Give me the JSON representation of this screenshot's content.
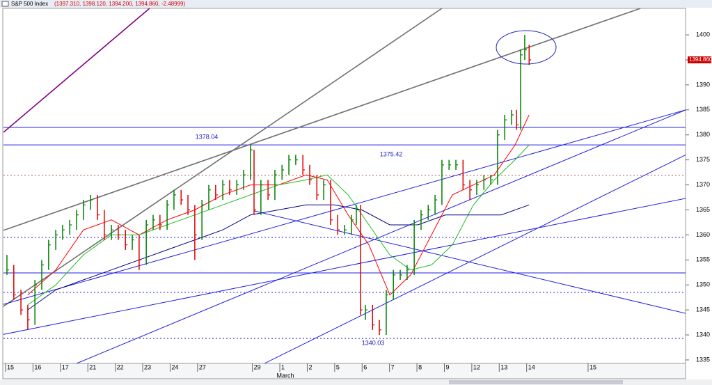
{
  "chart_data": {
    "type": "ohlc",
    "title": "S&P 500 Index",
    "quote": "(1397.310, 1398.120, 1394.200, 1394.860, -2.48999)",
    "last_label": "1394.860",
    "month_label": "March",
    "up_color": "#008000",
    "down_color": "#e00000",
    "x": [
      0.05,
      0.3,
      0.56,
      0.81,
      1.07,
      1.32,
      1.57,
      1.83,
      2.08,
      2.34,
      2.59,
      2.84,
      3.1,
      3.35,
      3.6,
      3.86,
      4.11,
      4.37,
      4.62,
      4.87,
      5.13,
      5.38,
      5.63,
      5.89,
      6.14,
      6.4,
      6.65,
      6.9,
      7.16,
      7.41,
      7.66,
      7.92,
      8.17,
      8.43,
      8.68,
      8.93,
      9.06,
      9.31,
      9.57,
      9.82,
      10.08,
      10.33,
      10.58,
      10.84,
      11.09,
      11.35,
      11.6,
      11.85,
      12.11,
      12.36,
      12.61,
      12.79,
      12.94,
      13.12,
      13.38,
      13.63,
      13.88,
      14.14,
      14.39,
      14.64,
      14.9,
      15.15,
      15.41,
      15.66,
      15.91,
      16.17,
      16.42,
      16.68,
      16.93,
      17.18,
      17.44,
      17.69,
      17.94,
      18.2,
      18.45,
      18.63,
      18.78,
      18.93,
      19.09
    ],
    "high": [
      1356,
      1354,
      1349,
      1346,
      1351,
      1355,
      1359,
      1361,
      1362,
      1363,
      1365,
      1367,
      1368,
      1368,
      1365,
      1362,
      1362,
      1361,
      1360,
      1360,
      1363,
      1364,
      1364,
      1367,
      1369,
      1369,
      1368,
      1366,
      1367,
      1370,
      1370,
      1371,
      1371,
      1371,
      1373,
      1378,
      1377,
      1371,
      1371,
      1373,
      1374,
      1376,
      1376,
      1376,
      1374,
      1372,
      1371,
      1371,
      1364,
      1362,
      1364,
      1366,
      1366,
      1346,
      1346,
      1343,
      1349,
      1353,
      1353,
      1354,
      1363,
      1365,
      1366,
      1368,
      1375,
      1375,
      1375,
      1375,
      1371,
      1371,
      1372,
      1372,
      1381,
      1384,
      1385,
      1385,
      1397,
      1400,
      1398
    ],
    "low": [
      1352,
      1347,
      1344,
      1341,
      1342,
      1349,
      1353,
      1357,
      1359,
      1360,
      1361,
      1363,
      1365,
      1363,
      1359,
      1359,
      1359,
      1357,
      1357,
      1353,
      1354,
      1361,
      1361,
      1361,
      1365,
      1366,
      1364,
      1355,
      1359,
      1365,
      1367,
      1367,
      1368,
      1368,
      1369,
      1371,
      1364,
      1364,
      1367,
      1367,
      1371,
      1372,
      1374,
      1372,
      1370,
      1367,
      1367,
      1362,
      1360,
      1360,
      1360,
      1362,
      1344,
      1343,
      1341,
      1340,
      1340,
      1347,
      1351,
      1351,
      1352,
      1361,
      1363,
      1364,
      1366,
      1373,
      1373,
      1369,
      1367,
      1368,
      1369,
      1370,
      1370,
      1379,
      1382,
      1381,
      1381,
      1395,
      1394
    ],
    "close": [
      1353,
      1348,
      1345,
      1343,
      1350,
      1354,
      1358,
      1360,
      1361,
      1362,
      1364,
      1366,
      1367,
      1364,
      1360,
      1361,
      1360,
      1358,
      1359,
      1355,
      1362,
      1363,
      1362,
      1366,
      1368,
      1367,
      1365,
      1360,
      1366,
      1369,
      1368,
      1370,
      1369,
      1370,
      1372,
      1377,
      1365,
      1370,
      1368,
      1372,
      1373,
      1375,
      1375,
      1373,
      1371,
      1368,
      1370,
      1363,
      1361,
      1361,
      1363,
      1365,
      1345,
      1345,
      1342,
      1341,
      1348,
      1352,
      1352,
      1353,
      1362,
      1364,
      1365,
      1367,
      1374,
      1374,
      1374,
      1370,
      1369,
      1370,
      1371,
      1371,
      1380,
      1383,
      1384,
      1382,
      1396,
      1397,
      1395
    ],
    "averages": [
      {
        "color": "#ff0000",
        "x": [
          0.81,
          1.83,
          2.84,
          3.86,
          4.87,
          5.89,
          6.9,
          7.92,
          8.93,
          9.95,
          10.96,
          11.73,
          12.49,
          13.25,
          14.01,
          14.77,
          15.53,
          16.29,
          17.06,
          17.82,
          18.58,
          19.09
        ],
        "values": [
          1348,
          1353,
          1361,
          1363,
          1360,
          1363,
          1365,
          1368,
          1370,
          1370,
          1372,
          1371,
          1364,
          1358,
          1348,
          1352,
          1360,
          1368,
          1370,
          1372,
          1378,
          1384
        ]
      },
      {
        "color": "#22bb22",
        "x": [
          0.81,
          1.83,
          2.84,
          3.86,
          4.87,
          5.89,
          6.9,
          7.92,
          8.93,
          9.95,
          10.96,
          11.73,
          12.49,
          13.25,
          14.01,
          14.77,
          15.53,
          16.29,
          17.06,
          17.82,
          18.58,
          19.09
        ],
        "values": [
          1346,
          1350,
          1356,
          1360,
          1360,
          1362,
          1364,
          1366,
          1368,
          1370,
          1371,
          1372,
          1368,
          1362,
          1356,
          1353,
          1354,
          1358,
          1366,
          1371,
          1375,
          1378
        ]
      },
      {
        "color": "#000080",
        "x": [
          0.81,
          1.83,
          2.84,
          3.86,
          4.87,
          5.89,
          6.9,
          7.92,
          8.93,
          9.95,
          10.96,
          11.98,
          12.99,
          14.01,
          15.03,
          16.04,
          17.06,
          18.07,
          19.09
        ],
        "values": [
          1345,
          1349,
          1351,
          1353,
          1355,
          1357,
          1359,
          1361,
          1364,
          1365,
          1366,
          1366,
          1365,
          1362,
          1362,
          1364,
          1364,
          1364,
          1366
        ]
      }
    ],
    "trendlines": [
      {
        "color": "#707070",
        "x": [
          -0.08,
          23.15
        ],
        "values": [
          1360.9,
          1405.3
        ]
      },
      {
        "color": "#707070",
        "x": [
          -0.08,
          15.91
        ],
        "values": [
          1345.7,
          1405.3
        ]
      },
      {
        "color": "#800080",
        "x": [
          -0.08,
          5.25
        ],
        "values": [
          1380.5,
          1405.3
        ]
      },
      {
        "color": "#2020e0",
        "x": [
          -0.08,
          24.8
        ],
        "values": [
          1346.1,
          1385
        ]
      },
      {
        "color": "#2020e0",
        "x": [
          2.59,
          24.8
        ],
        "values": [
          1334.3,
          1385
        ]
      },
      {
        "color": "#2020e0",
        "x": [
          9.44,
          24.8
        ],
        "values": [
          1334.3,
          1376
        ]
      },
      {
        "color": "#2020e0",
        "x": [
          -0.08,
          24.8
        ],
        "values": [
          1340.1,
          1367.3
        ]
      },
      {
        "color": "#2020e0",
        "x": [
          9.06,
          24.8
        ],
        "values": [
          1364.8,
          1344.3
        ]
      }
    ],
    "levels": [
      {
        "value": 1381.5,
        "color": "#2020e0",
        "dashed": false
      },
      {
        "value": 1378,
        "color": "#2020e0",
        "dashed": false
      },
      {
        "value": 1352.4,
        "color": "#2020e0",
        "dashed": false
      },
      {
        "value": 1359.5,
        "color": "#2020e0",
        "dashed": true
      },
      {
        "value": 1348.5,
        "color": "#2020e0",
        "dashed": true
      },
      {
        "value": 1339.3,
        "color": "#2020e0",
        "dashed": true
      },
      {
        "value": 1371.9,
        "color": "#c05050",
        "dashed": true
      }
    ],
    "annotations": [
      "1378.04",
      "1375.42",
      "1340.03"
    ],
    "xlim": [
      -0.076,
      24.54
    ],
    "ylim": [
      1334.3,
      1405.3
    ],
    "yticks": [
      1335,
      1340,
      1345,
      1350,
      1355,
      1360,
      1365,
      1370,
      1375,
      1380,
      1385,
      1390,
      1395,
      1400
    ],
    "xticks": [
      {
        "value": 0,
        "label": "15"
      },
      {
        "value": 1,
        "label": "16"
      },
      {
        "value": 2,
        "label": "17"
      },
      {
        "value": 3,
        "label": "21"
      },
      {
        "value": 4,
        "label": "22"
      },
      {
        "value": 5,
        "label": "23"
      },
      {
        "value": 6,
        "label": "24"
      },
      {
        "value": 7,
        "label": "27"
      },
      {
        "value": 9,
        "label": "29"
      },
      {
        "value": 10,
        "label": "1"
      },
      {
        "value": 11,
        "label": "2"
      },
      {
        "value": 12,
        "label": "5"
      },
      {
        "value": 13,
        "label": "6"
      },
      {
        "value": 14,
        "label": "7"
      },
      {
        "value": 15,
        "label": "8"
      },
      {
        "value": 16,
        "label": "9"
      },
      {
        "value": 17,
        "label": "12"
      },
      {
        "value": 18,
        "label": "13"
      },
      {
        "value": 19,
        "label": "14"
      },
      {
        "value": 21.24,
        "label": "15"
      }
    ]
  }
}
